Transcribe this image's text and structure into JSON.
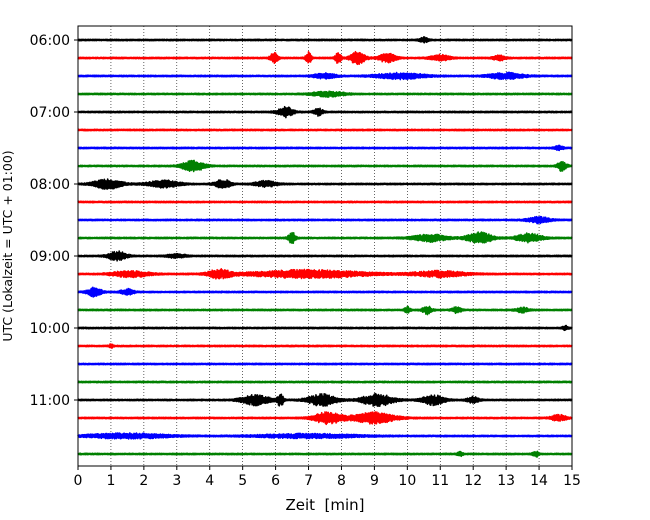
{
  "chart_data": {
    "type": "line",
    "chart_kind": "helicorder seismogram",
    "xlabel": "Zeit  [min]",
    "ylabel": "UTC (Lokalzeit = UTC + 01:00)",
    "xlim": [
      0,
      15
    ],
    "x_ticks": [
      0,
      1,
      2,
      3,
      4,
      5,
      6,
      7,
      8,
      9,
      10,
      11,
      12,
      13,
      14,
      15
    ],
    "x_tick_labels": [
      "0",
      "1",
      "2",
      "3",
      "4",
      "5",
      "6",
      "7",
      "8",
      "9",
      "10",
      "11",
      "12",
      "13",
      "14",
      "15"
    ],
    "vertical_grid": "dotted, every minute",
    "y_ticks": [
      {
        "label": "06:00",
        "row": 0
      },
      {
        "label": "07:00",
        "row": 4
      },
      {
        "label": "08:00",
        "row": 8
      },
      {
        "label": "09:00",
        "row": 12
      },
      {
        "label": "10:00",
        "row": 16
      },
      {
        "label": "11:00",
        "row": 20
      }
    ],
    "minutes_per_trace": 15,
    "trace_color_cycle": [
      "#000000",
      "#ff0000",
      "#0000ff",
      "#008000"
    ],
    "traces": [
      {
        "row": 0,
        "start": "06:00",
        "color": "#000000",
        "events": [
          [
            10.5,
            0.2,
            0.25
          ]
        ]
      },
      {
        "row": 1,
        "start": "06:15",
        "color": "#ff0000",
        "events": [
          [
            5.95,
            0.15,
            0.55
          ],
          [
            7.0,
            0.1,
            0.6
          ],
          [
            7.9,
            0.1,
            0.6
          ],
          [
            8.5,
            0.35,
            0.7
          ],
          [
            9.4,
            0.45,
            0.45
          ],
          [
            11.0,
            0.5,
            0.3
          ],
          [
            12.8,
            0.3,
            0.25
          ]
        ]
      },
      {
        "row": 2,
        "start": "06:30",
        "color": "#0000ff",
        "events": [
          [
            7.5,
            0.6,
            0.25
          ],
          [
            9.8,
            1.4,
            0.3
          ],
          [
            13.0,
            1.0,
            0.3
          ]
        ]
      },
      {
        "row": 3,
        "start": "06:45",
        "color": "#008000",
        "events": [
          [
            7.6,
            0.9,
            0.25
          ]
        ]
      },
      {
        "row": 4,
        "start": "07:00",
        "color": "#000000",
        "events": [
          [
            6.3,
            0.4,
            0.5
          ],
          [
            7.3,
            0.2,
            0.35
          ]
        ]
      },
      {
        "row": 5,
        "start": "07:15",
        "color": "#ff0000",
        "events": []
      },
      {
        "row": 6,
        "start": "07:30",
        "color": "#0000ff",
        "events": [
          [
            14.6,
            0.2,
            0.2
          ]
        ]
      },
      {
        "row": 7,
        "start": "07:45",
        "color": "#008000",
        "events": [
          [
            3.5,
            0.6,
            0.55
          ],
          [
            14.7,
            0.2,
            0.5
          ]
        ]
      },
      {
        "row": 8,
        "start": "08:00",
        "color": "#000000",
        "events": [
          [
            0.9,
            0.8,
            0.5
          ],
          [
            2.6,
            0.9,
            0.35
          ],
          [
            4.4,
            0.4,
            0.45
          ],
          [
            5.7,
            0.6,
            0.3
          ]
        ]
      },
      {
        "row": 9,
        "start": "08:15",
        "color": "#ff0000",
        "events": []
      },
      {
        "row": 10,
        "start": "08:30",
        "color": "#0000ff",
        "events": [
          [
            14.0,
            0.6,
            0.3
          ]
        ]
      },
      {
        "row": 11,
        "start": "08:45",
        "color": "#008000",
        "events": [
          [
            6.5,
            0.15,
            0.6
          ],
          [
            10.7,
            1.0,
            0.35
          ],
          [
            12.2,
            0.7,
            0.55
          ],
          [
            13.7,
            0.7,
            0.45
          ]
        ]
      },
      {
        "row": 12,
        "start": "09:00",
        "color": "#000000",
        "events": [
          [
            1.2,
            0.5,
            0.45
          ],
          [
            3.0,
            0.5,
            0.2
          ]
        ]
      },
      {
        "row": 13,
        "start": "09:15",
        "color": "#ff0000",
        "events": [
          [
            1.6,
            1.1,
            0.3
          ],
          [
            4.3,
            0.6,
            0.45
          ],
          [
            7.0,
            3.5,
            0.4
          ],
          [
            11.0,
            1.5,
            0.3
          ]
        ]
      },
      {
        "row": 14,
        "start": "09:30",
        "color": "#0000ff",
        "events": [
          [
            0.5,
            0.35,
            0.45
          ],
          [
            1.5,
            0.3,
            0.3
          ]
        ]
      },
      {
        "row": 15,
        "start": "09:45",
        "color": "#008000",
        "events": [
          [
            10.0,
            0.1,
            0.3
          ],
          [
            10.6,
            0.2,
            0.4
          ],
          [
            11.5,
            0.2,
            0.3
          ],
          [
            13.5,
            0.3,
            0.25
          ]
        ]
      },
      {
        "row": 16,
        "start": "10:00",
        "color": "#000000",
        "events": [
          [
            14.8,
            0.1,
            0.2
          ]
        ]
      },
      {
        "row": 17,
        "start": "10:15",
        "color": "#ff0000",
        "events": [
          [
            1.0,
            0.05,
            0.2
          ]
        ]
      },
      {
        "row": 18,
        "start": "10:30",
        "color": "#0000ff",
        "events": []
      },
      {
        "row": 19,
        "start": "10:45",
        "color": "#008000",
        "events": []
      },
      {
        "row": 20,
        "start": "11:00",
        "color": "#000000",
        "events": [
          [
            5.4,
            0.8,
            0.5
          ],
          [
            6.15,
            0.1,
            0.65
          ],
          [
            7.4,
            0.8,
            0.6
          ],
          [
            9.1,
            0.9,
            0.6
          ],
          [
            10.8,
            0.6,
            0.5
          ],
          [
            12.0,
            0.3,
            0.3
          ]
        ]
      },
      {
        "row": 21,
        "start": "11:15",
        "color": "#ff0000",
        "events": [
          [
            7.6,
            0.8,
            0.6
          ],
          [
            9.0,
            1.2,
            0.55
          ],
          [
            14.6,
            0.4,
            0.3
          ]
        ]
      },
      {
        "row": 22,
        "start": "11:30",
        "color": "#0000ff",
        "events": [
          [
            1.5,
            2.5,
            0.25
          ],
          [
            7.0,
            3.0,
            0.2
          ]
        ]
      },
      {
        "row": 23,
        "start": "11:45",
        "color": "#008000",
        "events": [
          [
            11.6,
            0.1,
            0.2
          ],
          [
            13.9,
            0.1,
            0.3
          ]
        ]
      }
    ]
  }
}
